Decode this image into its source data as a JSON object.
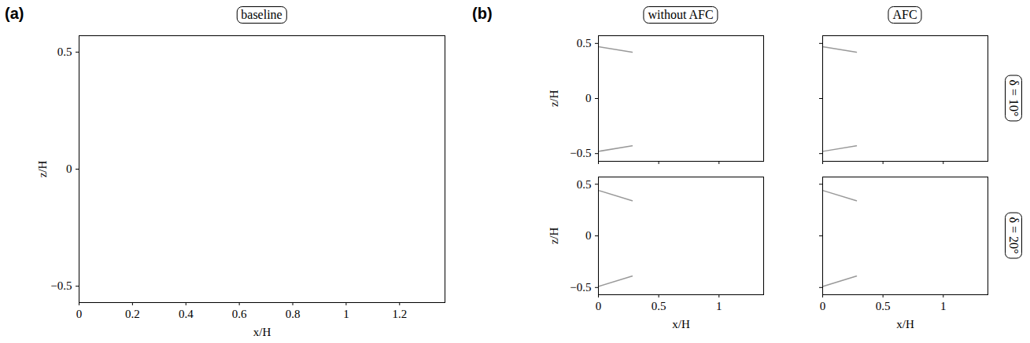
{
  "panels": [
    {
      "label": "(a)",
      "title": "baseline"
    },
    {
      "label": "(b)",
      "column_titles": [
        "without AFC",
        "AFC"
      ],
      "row_titles": [
        "δ = 10°",
        "δ = 20°"
      ]
    }
  ],
  "chart_data": [
    {
      "type": "line",
      "xlabel": "x/H",
      "ylabel": "z/H",
      "xlim": [
        0,
        1.37
      ],
      "ylim": [
        -0.57,
        0.57
      ],
      "xticks": [
        0,
        0.2,
        0.4,
        0.6,
        0.8,
        1,
        1.2
      ],
      "yticks": [
        -0.5,
        0,
        0.5
      ],
      "grid": false,
      "series": []
    },
    {
      "type": "line",
      "ylabel": "z/H",
      "xlim": [
        0,
        1.37
      ],
      "ylim": [
        -0.57,
        0.57
      ],
      "xticks": [
        0,
        0.5,
        1
      ],
      "yticks": [
        -0.5,
        0,
        0.5
      ],
      "grid": false,
      "tick_labels": "y",
      "series": [
        {
          "color": "#999999",
          "x": [
            0,
            0.28
          ],
          "values": [
            0.47,
            0.42
          ]
        },
        {
          "color": "#999999",
          "x": [
            0,
            0.28
          ],
          "values": [
            -0.48,
            -0.43
          ]
        }
      ]
    },
    {
      "type": "line",
      "xlim": [
        0,
        1.37
      ],
      "ylim": [
        -0.57,
        0.57
      ],
      "xticks": [
        0,
        0.5,
        1
      ],
      "yticks": [
        -0.5,
        0,
        0.5
      ],
      "grid": false,
      "tick_labels": false,
      "series": [
        {
          "color": "#999999",
          "x": [
            0,
            0.28
          ],
          "values": [
            0.47,
            0.42
          ]
        },
        {
          "color": "#999999",
          "x": [
            0,
            0.28
          ],
          "values": [
            -0.48,
            -0.43
          ]
        }
      ]
    },
    {
      "type": "line",
      "xlabel": "x/H",
      "ylabel": "z/H",
      "xlim": [
        0,
        1.37
      ],
      "ylim": [
        -0.57,
        0.57
      ],
      "xticks": [
        0,
        0.5,
        1
      ],
      "yticks": [
        -0.5,
        0,
        0.5
      ],
      "grid": false,
      "series": [
        {
          "color": "#999999",
          "x": [
            0,
            0.28
          ],
          "values": [
            0.44,
            0.34
          ]
        },
        {
          "color": "#999999",
          "x": [
            0,
            0.28
          ],
          "values": [
            -0.49,
            -0.39
          ]
        }
      ]
    },
    {
      "type": "line",
      "xlabel": "x/H",
      "xlim": [
        0,
        1.37
      ],
      "ylim": [
        -0.57,
        0.57
      ],
      "xticks": [
        0,
        0.5,
        1
      ],
      "yticks": [
        -0.5,
        0,
        0.5
      ],
      "grid": false,
      "tick_labels": "x",
      "series": [
        {
          "color": "#999999",
          "x": [
            0,
            0.28
          ],
          "values": [
            0.44,
            0.34
          ]
        },
        {
          "color": "#999999",
          "x": [
            0,
            0.28
          ],
          "values": [
            -0.49,
            -0.39
          ]
        }
      ]
    }
  ]
}
